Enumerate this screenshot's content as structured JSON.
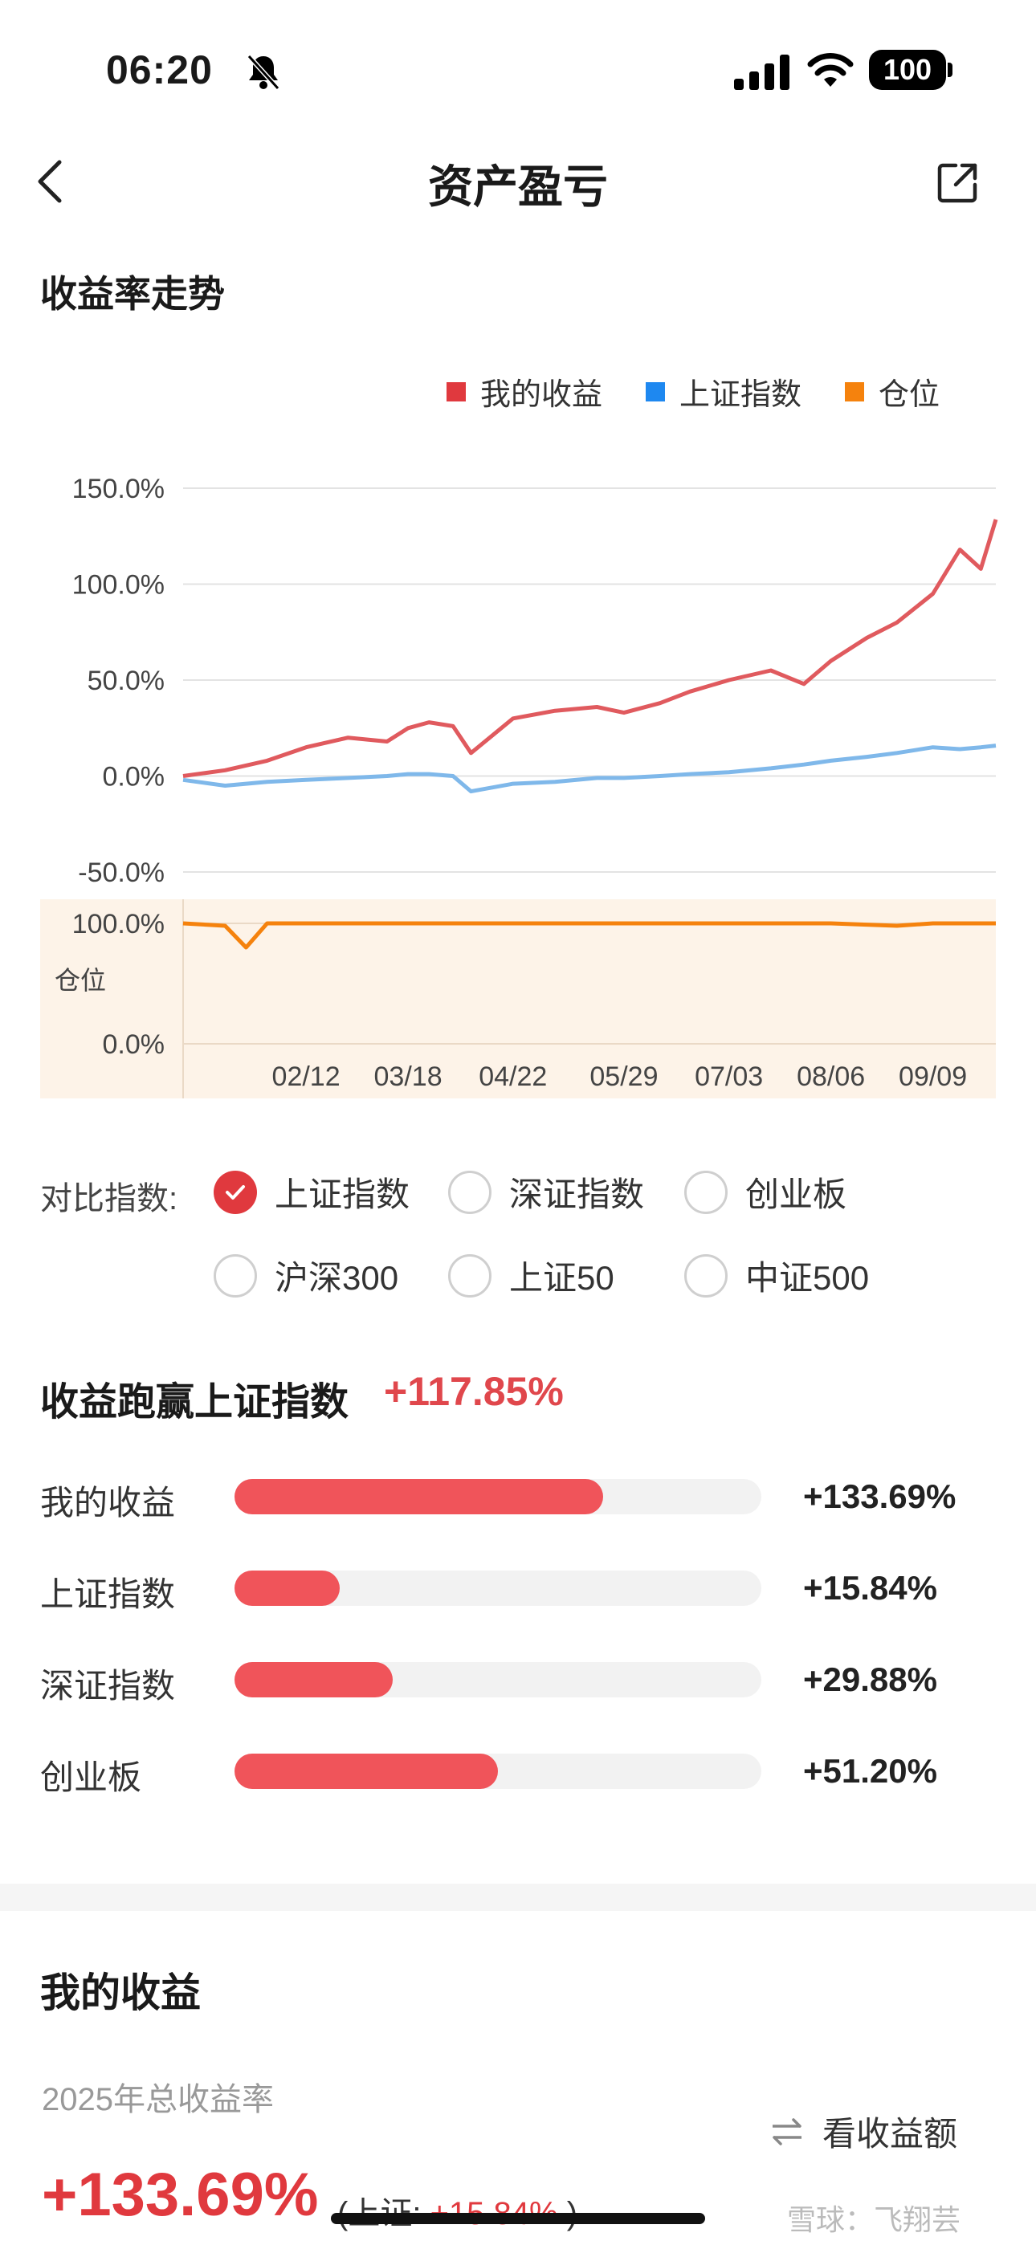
{
  "status": {
    "time": "06:20",
    "battery": "100"
  },
  "nav": {
    "title": "资产盈亏"
  },
  "section": {
    "trend_title": "收益率走势"
  },
  "legend": [
    {
      "label": "我的收益",
      "color": "#e0393e"
    },
    {
      "label": "上证指数",
      "color": "#1e88f0"
    },
    {
      "label": "仓位",
      "color": "#f5820d"
    }
  ],
  "chart_data": {
    "type": "line",
    "x_ticks": [
      "02/12",
      "03/18",
      "04/22",
      "05/29",
      "07/03",
      "08/06",
      "09/09"
    ],
    "y_ticks": [
      "150.0%",
      "100.0%",
      "50.0%",
      "0.0%",
      "-50.0%"
    ],
    "ylim": [
      -50,
      150
    ],
    "series": [
      {
        "name": "我的收益",
        "color": "#e05a5e",
        "x": [
          "01/02",
          "01/16",
          "01/30",
          "02/12",
          "02/26",
          "03/11",
          "03/18",
          "03/25",
          "04/02",
          "04/08",
          "04/22",
          "05/06",
          "05/20",
          "05/29",
          "06/10",
          "06/20",
          "07/03",
          "07/17",
          "07/28",
          "08/06",
          "08/18",
          "08/28",
          "09/09",
          "09/18",
          "09/25",
          "09/30"
        ],
        "values": [
          0,
          3,
          8,
          15,
          20,
          18,
          25,
          28,
          26,
          12,
          30,
          34,
          36,
          33,
          38,
          44,
          50,
          55,
          48,
          60,
          72,
          80,
          95,
          118,
          108,
          133.69
        ]
      },
      {
        "name": "上证指数",
        "color": "#7fb8ea",
        "x": [
          "01/02",
          "01/16",
          "01/30",
          "02/12",
          "02/26",
          "03/11",
          "03/18",
          "03/25",
          "04/02",
          "04/08",
          "04/22",
          "05/06",
          "05/20",
          "05/29",
          "06/10",
          "06/20",
          "07/03",
          "07/17",
          "07/28",
          "08/06",
          "08/18",
          "08/28",
          "09/09",
          "09/18",
          "09/25",
          "09/30"
        ],
        "values": [
          -2,
          -5,
          -3,
          -2,
          -1,
          0,
          1,
          1,
          0,
          -8,
          -4,
          -3,
          -1,
          -1,
          0,
          1,
          2,
          4,
          6,
          8,
          10,
          12,
          15,
          14,
          15,
          15.84
        ]
      }
    ],
    "position_panel": {
      "label": "仓位",
      "y_ticks": [
        "100.0%",
        "0.0%"
      ],
      "ylim": [
        0,
        100
      ],
      "series": {
        "name": "仓位",
        "color": "#f5820d",
        "x": [
          "01/02",
          "01/16",
          "01/23",
          "01/30",
          "02/12",
          "03/18",
          "04/22",
          "05/29",
          "07/03",
          "08/06",
          "08/28",
          "09/09",
          "09/30"
        ],
        "values": [
          100,
          98,
          80,
          100,
          100,
          100,
          100,
          100,
          100,
          100,
          98,
          100,
          100
        ]
      }
    }
  },
  "compare": {
    "label": "对比指数:",
    "options": [
      {
        "label": "上证指数",
        "checked": true
      },
      {
        "label": "深证指数",
        "checked": false
      },
      {
        "label": "创业板",
        "checked": false
      },
      {
        "label": "沪深300",
        "checked": false
      },
      {
        "label": "上证50",
        "checked": false
      },
      {
        "label": "中证500",
        "checked": false
      }
    ]
  },
  "performance": {
    "title": "收益跑赢上证指数",
    "value": "+117.85%",
    "rows": [
      {
        "label": "我的收益",
        "value": "+133.69%",
        "fraction": 0.7
      },
      {
        "label": "上证指数",
        "value": "+15.84%",
        "fraction": 0.2
      },
      {
        "label": "深证指数",
        "value": "+29.88%",
        "fraction": 0.3
      },
      {
        "label": "创业板",
        "value": "+51.20%",
        "fraction": 0.5
      }
    ]
  },
  "my_returns": {
    "title": "我的收益",
    "year_label": "2025年总收益率",
    "toggle_label": "看收益额",
    "total_return": "+133.69%",
    "compare_prefix": "(上证:",
    "compare_value": "+15.84%",
    "compare_suffix": ")"
  },
  "watermark": "雪球：飞翔芸"
}
